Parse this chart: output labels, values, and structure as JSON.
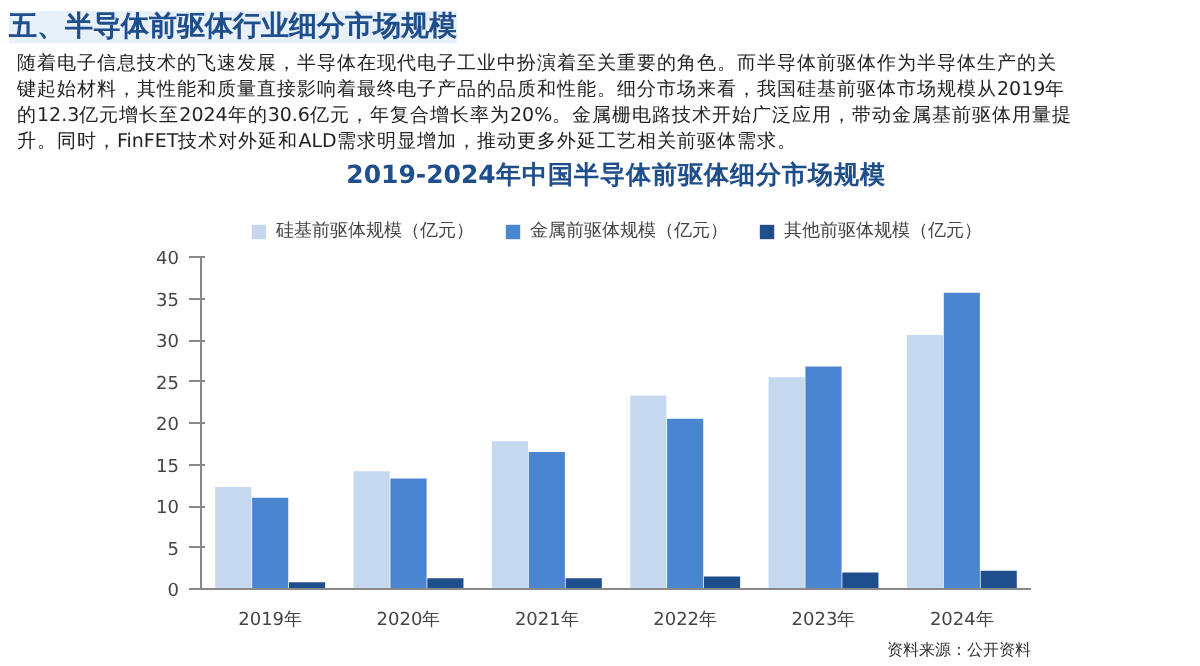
{
  "chart_data": {
    "type": "bar",
    "title": "2019-2024年中国半导体前驱体细分市场规模",
    "categories": [
      "2019年",
      "2020年",
      "2021年",
      "2022年",
      "2023年",
      "2024年"
    ],
    "series": [
      {
        "name": "硅基前驱体规模（亿元）",
        "color": "#c5d8f0",
        "values": [
          12.3,
          14.2,
          17.8,
          23.3,
          25.5,
          30.6
        ]
      },
      {
        "name": "金属前驱体规模（亿元）",
        "color": "#4a86d0",
        "values": [
          11.0,
          13.3,
          16.5,
          20.5,
          26.8,
          35.7
        ]
      },
      {
        "name": "其他前驱体规模（亿元）",
        "color": "#1f4e8c",
        "values": [
          0.8,
          1.3,
          1.3,
          1.5,
          2.0,
          2.2
        ]
      }
    ],
    "ylim": [
      0,
      40
    ],
    "yticks": [
      0,
      5,
      10,
      15,
      20,
      25,
      30,
      35,
      40
    ],
    "grid": false,
    "legend": "top",
    "annotations": [
      "五、半导体前驱体行业细分市场规模",
      "随着电子信息技术的飞速发展，半导体在现代电子工业中扮演着至关重要的角色。而半导体前驱体作为半导体生产的关",
      "键起始材料，其性能和质量直接影响着最终电子产品的品质和性能。细分市场来看，我国硅基前驱体市场规模从2019年",
      "的12.3亿元增长至2024年的30.6亿元，年复合增长率为20%。金属栅电路技术开始广泛应用，带动金属基前驱体用量提",
      "升。同时，FinFET技术对外延和ALD需求明显增加，推动更多外延工艺相关前驱体需求。",
      "资料来源：公开资料"
    ]
  }
}
